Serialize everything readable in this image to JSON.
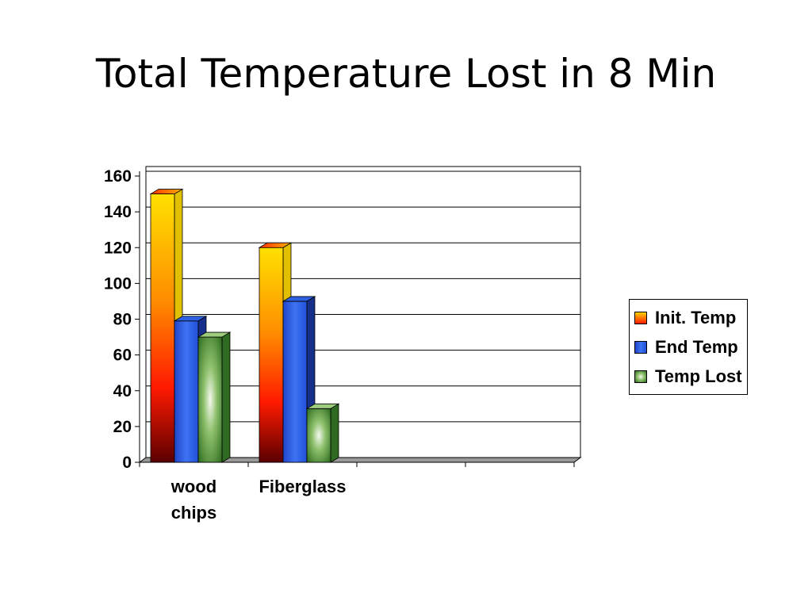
{
  "slide": {
    "title": "Total Temperature Lost in 8 Min"
  },
  "chart_data": {
    "type": "bar",
    "title": "Total Temperature Lost in 8 Min",
    "xlabel": "",
    "ylabel": "",
    "ylim": [
      0,
      160
    ],
    "yticks": [
      0,
      20,
      40,
      60,
      80,
      100,
      120,
      140,
      160
    ],
    "categories": [
      "wood chips",
      "Fiberglass",
      "",
      ""
    ],
    "category_lines": [
      [
        "wood",
        "chips"
      ],
      [
        "Fiberglass"
      ],
      [],
      []
    ],
    "series": [
      {
        "name": "Init. Temp",
        "values": [
          150,
          120,
          null,
          null
        ],
        "color": "#ff6a00"
      },
      {
        "name": "End Temp",
        "values": [
          79,
          90,
          null,
          null
        ],
        "color": "#2f5fe6"
      },
      {
        "name": "Temp Lost",
        "values": [
          70,
          30,
          null,
          null
        ],
        "color": "#3a8a2a"
      }
    ],
    "grid": true,
    "legend": "right",
    "style": "3d-clustered"
  }
}
